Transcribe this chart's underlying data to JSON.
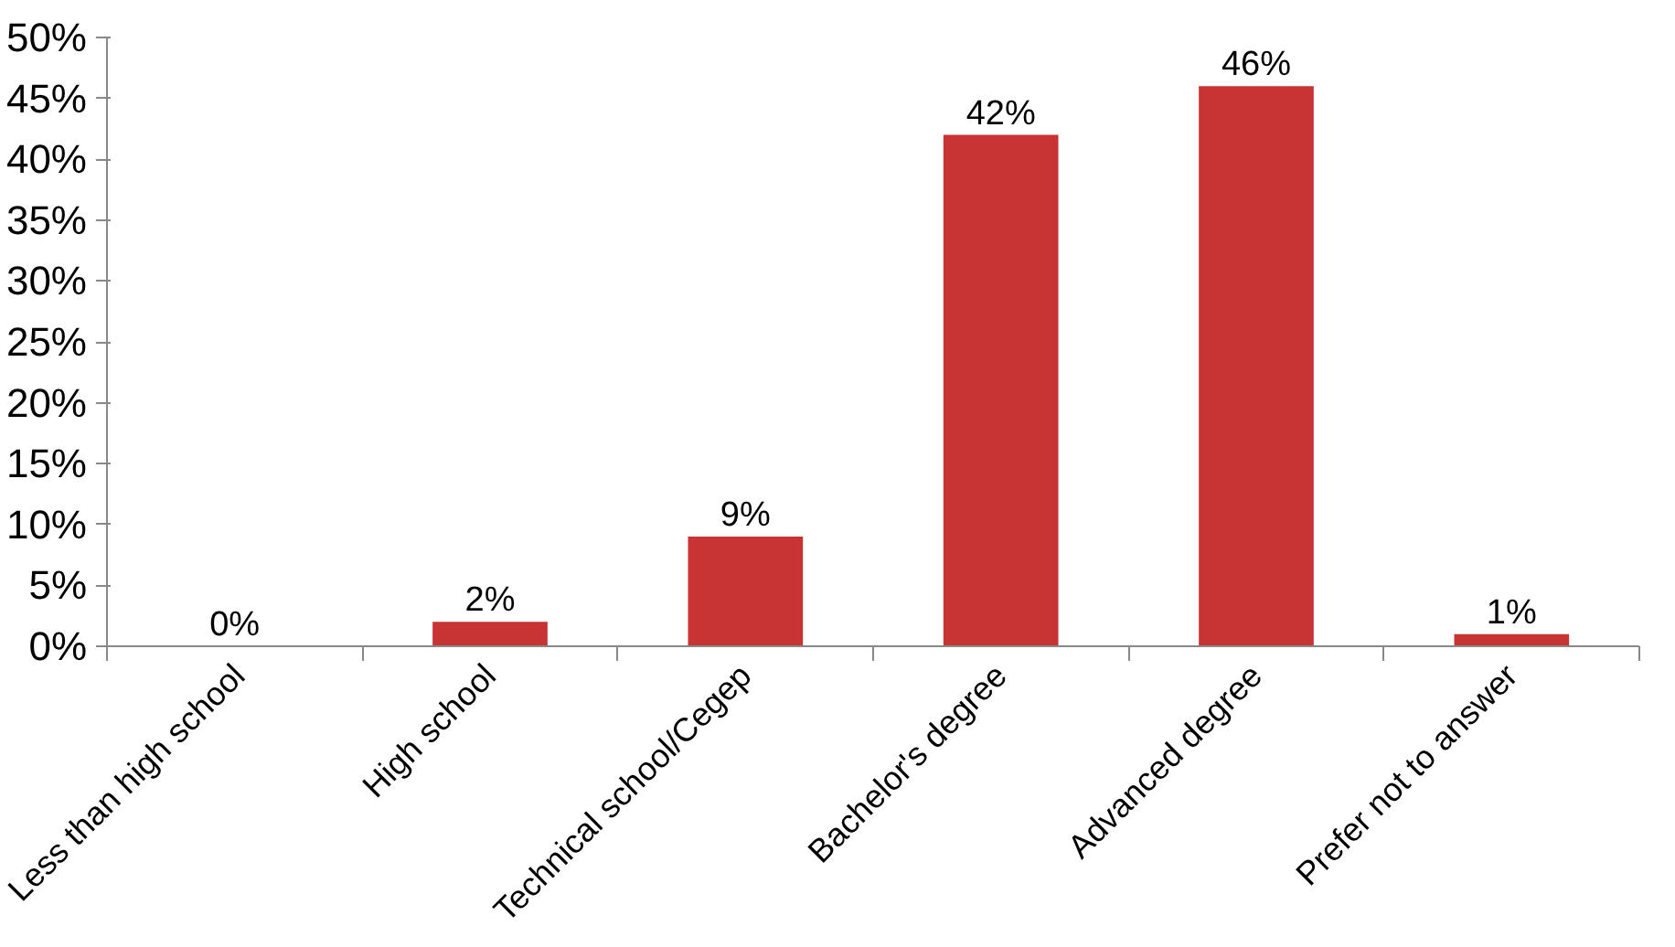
{
  "chart_data": {
    "type": "bar",
    "categories": [
      "Less than high school",
      "High school",
      "Technical school/Cegep",
      "Bachelor's degree",
      "Advanced degree",
      "Prefer not to answer"
    ],
    "values": [
      0,
      2,
      9,
      42,
      46,
      1
    ],
    "value_labels": [
      "0%",
      "2%",
      "9%",
      "42%",
      "46%",
      "1%"
    ],
    "color": "#c83434",
    "ylim": [
      0,
      50
    ],
    "yticks": [
      {
        "value": 0,
        "label": "0%"
      },
      {
        "value": 5,
        "label": "5%"
      },
      {
        "value": 10,
        "label": "10%"
      },
      {
        "value": 15,
        "label": "15%"
      },
      {
        "value": 20,
        "label": "20%"
      },
      {
        "value": 25,
        "label": "25%"
      },
      {
        "value": 30,
        "label": "30%"
      },
      {
        "value": 35,
        "label": "35%"
      },
      {
        "value": 40,
        "label": "40%"
      },
      {
        "value": 45,
        "label": "45%"
      },
      {
        "value": 50,
        "label": "50%"
      }
    ],
    "grid": false
  }
}
